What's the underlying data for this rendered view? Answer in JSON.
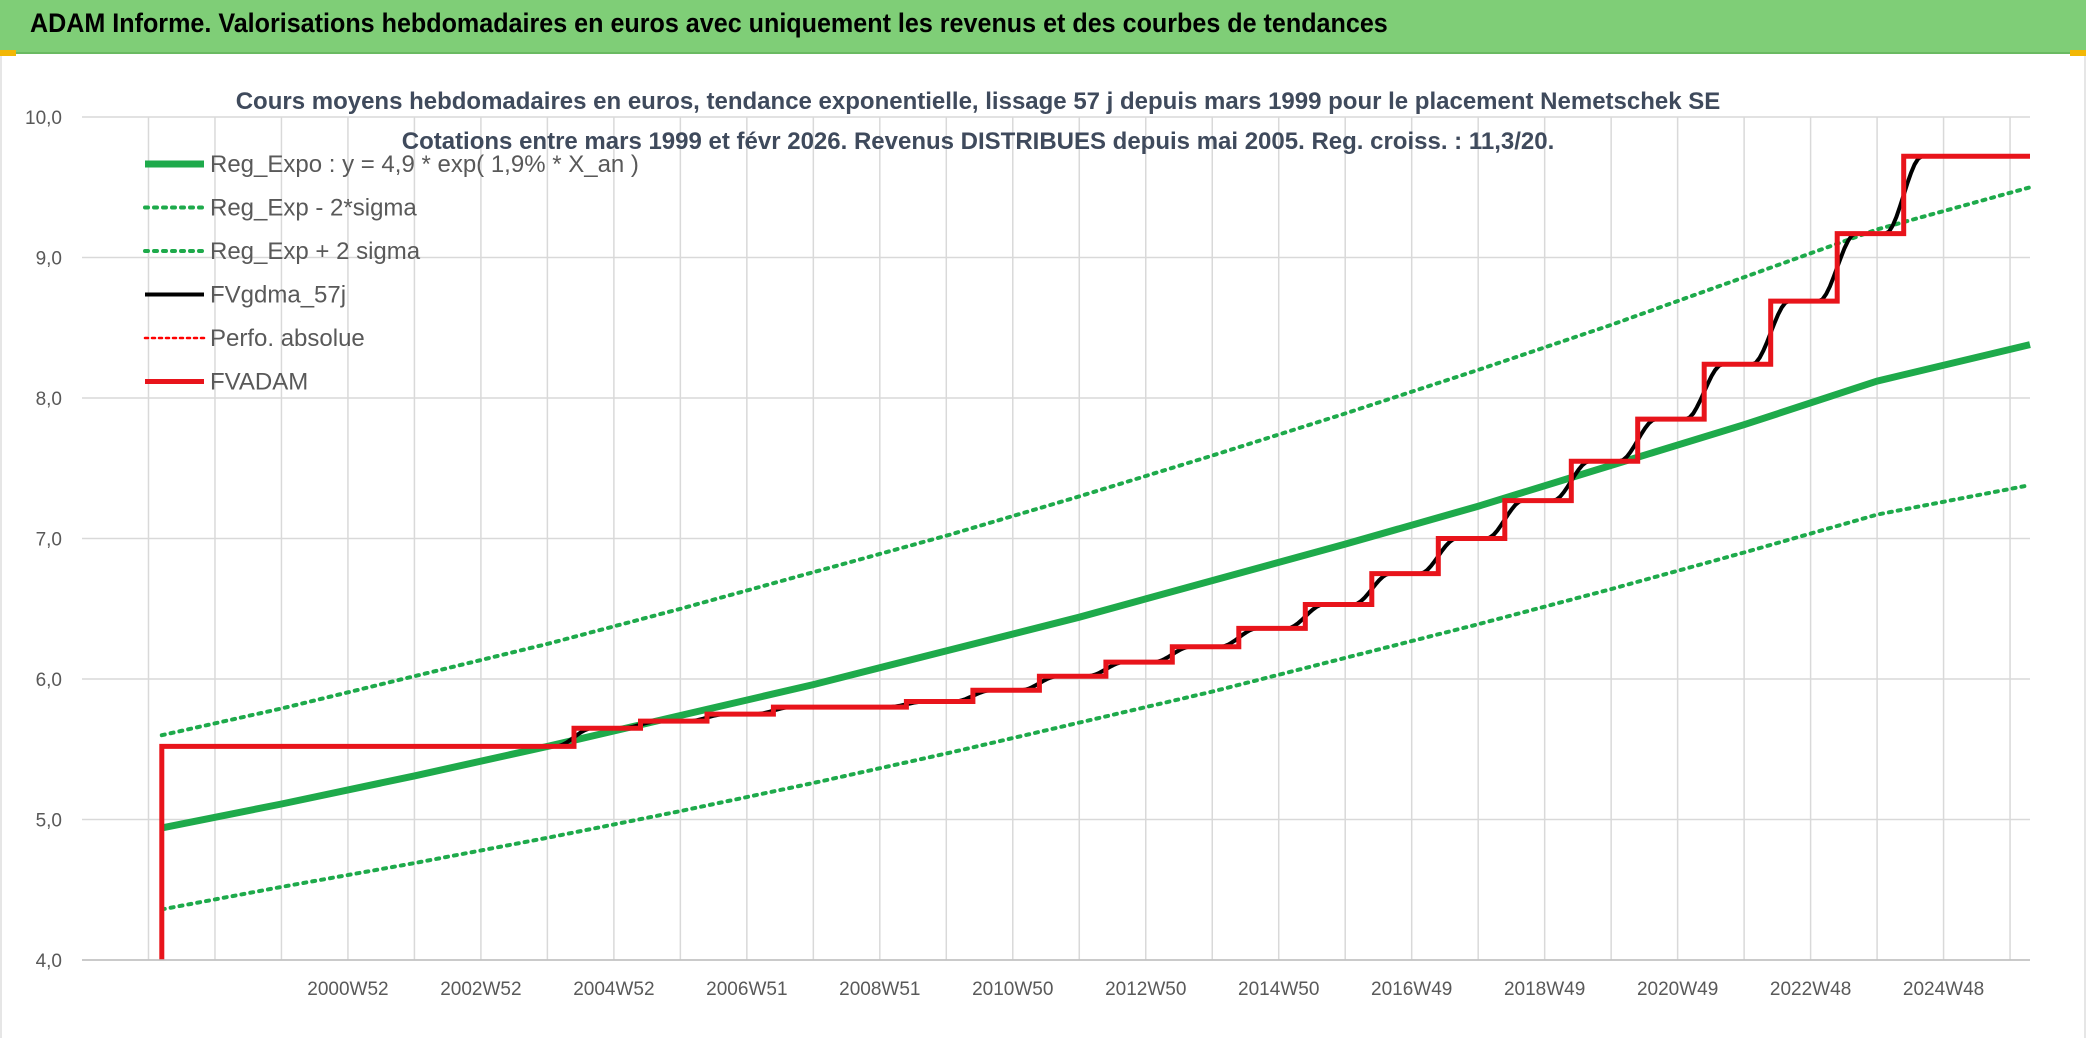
{
  "header": {
    "title": "ADAM Informe. Valorisations hebdomadaires en euros avec uniquement les revenus et des courbes de tendances",
    "background": "#7fce77",
    "corner_accent": "#f2b705"
  },
  "chart_data": {
    "type": "line",
    "title_lines": [
      "Cours moyens hebdomadaires en euros, tendance exponentielle, lissage 57 j depuis mars 1999 pour le placement Nemetschek SE",
      "Cotations entre mars 1999 et févr 2026. Revenus DISTRIBUES depuis mai 2005. Reg. croiss. : 11,3/20."
    ],
    "ylim": [
      4.0,
      10.0
    ],
    "y_ticks": [
      "4,0",
      "5,0",
      "6,0",
      "7,0",
      "8,0",
      "9,0",
      "10,0"
    ],
    "xlim": [
      1997.0,
      2026.3
    ],
    "x_ticks": [
      {
        "label": "2000W52",
        "x": 2001.0
      },
      {
        "label": "2002W52",
        "x": 2003.0
      },
      {
        "label": "2004W52",
        "x": 2005.0
      },
      {
        "label": "2006W51",
        "x": 2007.0
      },
      {
        "label": "2008W51",
        "x": 2009.0
      },
      {
        "label": "2010W50",
        "x": 2011.0
      },
      {
        "label": "2012W50",
        "x": 2013.0
      },
      {
        "label": "2014W50",
        "x": 2015.0
      },
      {
        "label": "2016W49",
        "x": 2017.0
      },
      {
        "label": "2018W49",
        "x": 2019.0
      },
      {
        "label": "2020W49",
        "x": 2021.0
      },
      {
        "label": "2022W48",
        "x": 2023.0
      },
      {
        "label": "2024W48",
        "x": 2025.0
      }
    ],
    "grid": true,
    "legend_position": "top-left",
    "regression": {
      "a": 4.9,
      "rate": 0.019,
      "x_start": 1998.2,
      "x_end": 2026.3,
      "sigma_offset": 0.67
    },
    "series": [
      {
        "name": "Reg_Expo : y = 4,9 * exp( 1,9% *  X_an )",
        "color": "#1eaa4b",
        "style": "solid-thick",
        "x": [
          1998.2,
          2000,
          2002,
          2004,
          2006,
          2008,
          2010,
          2012,
          2014,
          2016,
          2018,
          2020,
          2022,
          2024,
          2026.3
        ],
        "y": [
          4.94,
          5.11,
          5.31,
          5.52,
          5.74,
          5.96,
          6.2,
          6.44,
          6.7,
          6.96,
          7.23,
          7.52,
          7.81,
          8.12,
          8.38
        ]
      },
      {
        "name": "Reg_Exp - 2*sigma",
        "color": "#1eaa4b",
        "style": "dotted",
        "x": [
          1998.2,
          2000,
          2002,
          2004,
          2006,
          2008,
          2010,
          2012,
          2014,
          2016,
          2018,
          2020,
          2022,
          2024,
          2026.3
        ],
        "y": [
          4.36,
          4.52,
          4.69,
          4.87,
          5.06,
          5.26,
          5.47,
          5.69,
          5.91,
          6.15,
          6.39,
          6.64,
          6.9,
          7.17,
          7.38
        ]
      },
      {
        "name": "Reg_Exp + 2 sigma",
        "color": "#1eaa4b",
        "style": "dotted",
        "x": [
          1998.2,
          2000,
          2002,
          2004,
          2006,
          2008,
          2010,
          2012,
          2014,
          2016,
          2018,
          2020,
          2022,
          2024,
          2026.3
        ],
        "y": [
          5.6,
          5.79,
          6.02,
          6.25,
          6.5,
          6.76,
          7.02,
          7.3,
          7.59,
          7.89,
          8.2,
          8.52,
          8.86,
          9.2,
          9.5
        ]
      },
      {
        "name": "FVgdma_57j",
        "color": "#000000",
        "style": "smooth-steps"
      },
      {
        "name": "Perfo. absolue",
        "color": "#ff0000",
        "style": "dotted-thin"
      },
      {
        "name": "FVADAM",
        "color": "#e8141b",
        "style": "steps-thick",
        "steps": [
          {
            "x": 1998.2,
            "y": 4.0
          },
          {
            "x": 1998.2,
            "y": 5.52
          },
          {
            "x": 2004.4,
            "y": 5.65
          },
          {
            "x": 2005.4,
            "y": 5.7
          },
          {
            "x": 2006.4,
            "y": 5.75
          },
          {
            "x": 2007.4,
            "y": 5.8
          },
          {
            "x": 2009.4,
            "y": 5.84
          },
          {
            "x": 2010.4,
            "y": 5.92
          },
          {
            "x": 2011.4,
            "y": 6.02
          },
          {
            "x": 2012.4,
            "y": 6.12
          },
          {
            "x": 2013.4,
            "y": 6.23
          },
          {
            "x": 2014.4,
            "y": 6.36
          },
          {
            "x": 2015.4,
            "y": 6.53
          },
          {
            "x": 2016.4,
            "y": 6.75
          },
          {
            "x": 2017.4,
            "y": 7.0
          },
          {
            "x": 2018.4,
            "y": 7.27
          },
          {
            "x": 2019.4,
            "y": 7.55
          },
          {
            "x": 2020.4,
            "y": 7.85
          },
          {
            "x": 2021.4,
            "y": 8.24
          },
          {
            "x": 2022.4,
            "y": 8.69
          },
          {
            "x": 2023.4,
            "y": 9.17
          },
          {
            "x": 2024.4,
            "y": 9.72
          }
        ],
        "x_end": 2026.3
      }
    ]
  }
}
